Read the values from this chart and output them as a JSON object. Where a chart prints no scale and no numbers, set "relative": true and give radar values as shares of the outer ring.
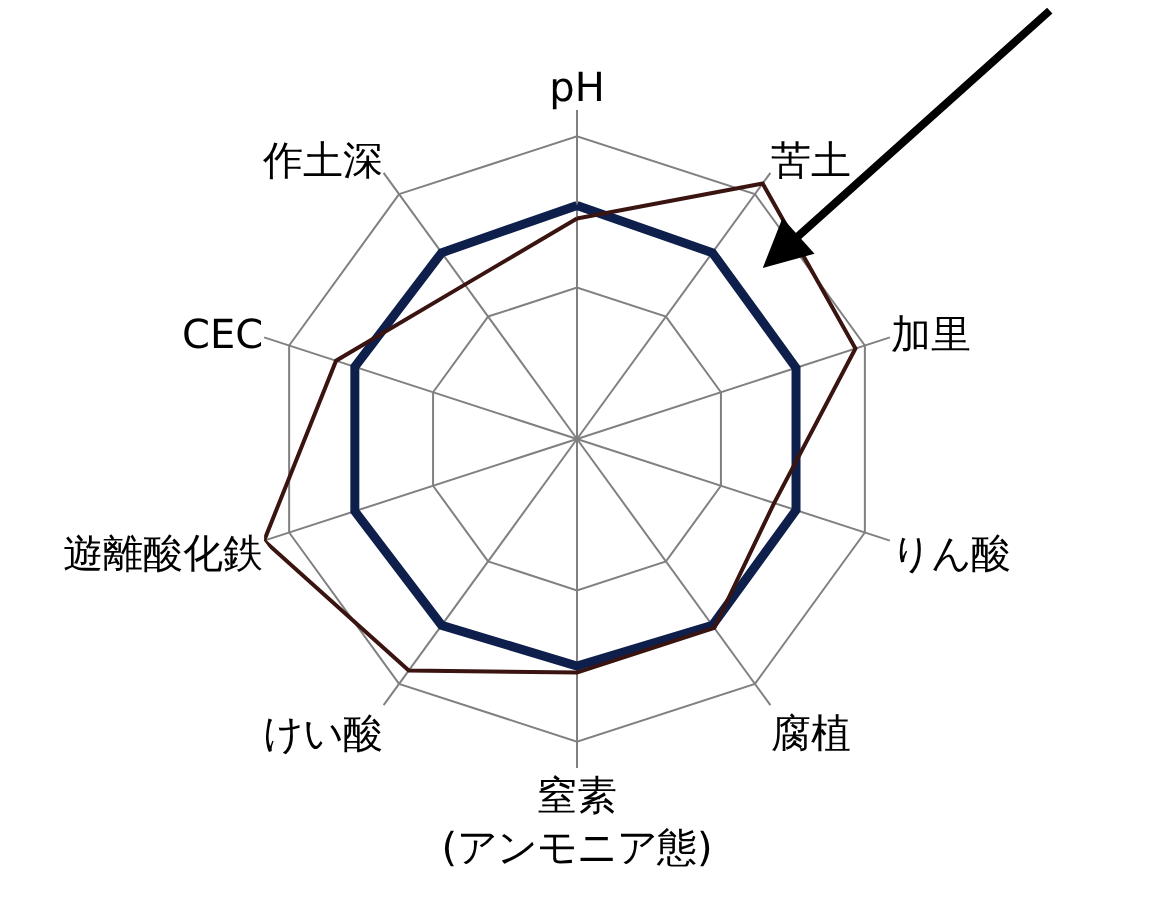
{
  "chart_data": {
    "type": "radar",
    "relative": true,
    "categories": [
      "pH",
      "苦土",
      "加里",
      "りん酸",
      "腐植",
      "窒素\n(アンモニア態)",
      "けい酸",
      "遊離酸化鉄",
      "CEC",
      "作土深"
    ],
    "series": [
      {
        "color": "#0d1f4a",
        "values": [
          0.71,
          0.7,
          0.7,
          0.7,
          0.7,
          0.69,
          0.7,
          0.71,
          0.71,
          0.7
        ]
      },
      {
        "color": "#3a1410",
        "values": [
          0.67,
          0.96,
          0.89,
          0.63,
          0.71,
          0.71,
          0.87,
          1.0,
          0.77,
          0.58
        ]
      }
    ],
    "grid": true,
    "marker": "none",
    "line_style": "solid"
  }
}
